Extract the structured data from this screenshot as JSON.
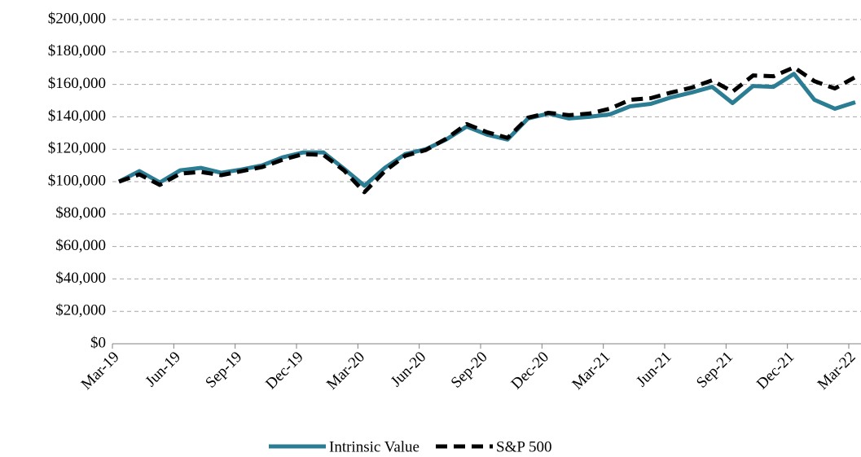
{
  "chart_data": {
    "type": "line",
    "categories": [
      "Mar-19",
      null,
      null,
      "Jun-19",
      null,
      null,
      "Sep-19",
      null,
      null,
      "Dec-19",
      null,
      null,
      "Mar-20",
      null,
      null,
      "Jun-20",
      null,
      null,
      "Sep-20",
      null,
      null,
      "Dec-20",
      null,
      null,
      "Mar-21",
      null,
      null,
      "Jun-21",
      null,
      null,
      "Sep-21",
      null,
      null,
      "Dec-21",
      null,
      null,
      "Mar-22"
    ],
    "series": [
      {
        "name": "Intrinsic Value",
        "color": "#2a7d93",
        "dash": false,
        "values": [
          100000,
          106500,
          99500,
          107000,
          108500,
          105500,
          107500,
          110000,
          115000,
          118000,
          118000,
          108000,
          97500,
          108500,
          117000,
          120000,
          126000,
          134000,
          129000,
          126000,
          139000,
          142000,
          139000,
          140000,
          141500,
          146500,
          148000,
          152000,
          155000,
          158500,
          148500,
          159000,
          158500,
          166500,
          150500,
          145000,
          149000
        ]
      },
      {
        "name": "S&P 500",
        "color": "#000000",
        "dash": true,
        "values": [
          100000,
          104500,
          98000,
          105000,
          106000,
          104000,
          106500,
          109000,
          113500,
          117000,
          116500,
          107000,
          93500,
          106500,
          116000,
          119500,
          126500,
          135500,
          130500,
          127000,
          139500,
          142500,
          141000,
          142000,
          145000,
          150500,
          151500,
          155000,
          158000,
          162500,
          155500,
          165500,
          165000,
          170500,
          162000,
          157500,
          164500
        ]
      }
    ],
    "ylim": [
      0,
      200000
    ],
    "yticks": [
      {
        "value": 0,
        "label": "$0"
      },
      {
        "value": 20000,
        "label": "$20,000"
      },
      {
        "value": 40000,
        "label": "$40,000"
      },
      {
        "value": 60000,
        "label": "$60,000"
      },
      {
        "value": 80000,
        "label": "$80,000"
      },
      {
        "value": 100000,
        "label": "$100,000"
      },
      {
        "value": 120000,
        "label": "$120,000"
      },
      {
        "value": 140000,
        "label": "$140,000"
      },
      {
        "value": 160000,
        "label": "$160,000"
      },
      {
        "value": 180000,
        "label": "$180,000"
      },
      {
        "value": 200000,
        "label": "$200,000"
      }
    ],
    "grid": true,
    "legend": "bottom"
  }
}
